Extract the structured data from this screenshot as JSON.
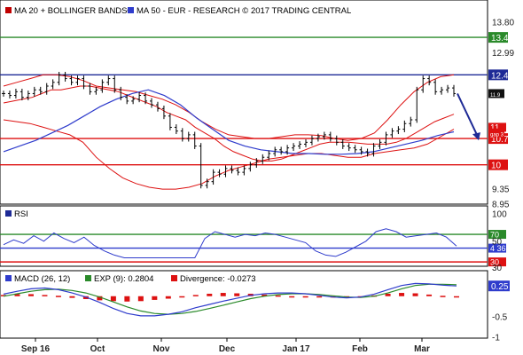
{
  "chart_data": [
    {
      "type": "line",
      "panel": "price",
      "header": {
        "sq1_color": "#c00000",
        "label1": "MA 20 + BOLLINGER BANDS®",
        "sq2_color": "#2f3ccc",
        "label2": "MA 50 - EUR - RESEARCH © 2017 TRADING CENTRAL"
      },
      "ylim": [
        8.95,
        14.35
      ],
      "y_ticks": [
        "13.80",
        "12.99",
        "9.35",
        "8.95"
      ],
      "levels": [
        {
          "value": 13.4,
          "label": "13.4",
          "color": "#2a8a2a"
        },
        {
          "value": 12.4,
          "label": "12.4",
          "color": "#1e2a96"
        },
        {
          "value": 10.7,
          "label": "10.7",
          "color": "#dd1111"
        },
        {
          "value": 10.0,
          "label": "10",
          "color": "#dd1111"
        }
      ],
      "tags": [
        {
          "value": 11.9,
          "label": "11.9",
          "color": "#111111"
        },
        {
          "value": 11.0,
          "label": "11",
          "color": "#dd1111"
        },
        {
          "value": 10.85,
          "label": "gap 3",
          "color": "#dd1111"
        }
      ],
      "price": [
        11.9,
        11.85,
        11.95,
        11.8,
        11.9,
        12.0,
        11.95,
        12.1,
        12.2,
        12.4,
        12.3,
        12.2,
        12.3,
        12.1,
        11.95,
        12.0,
        12.2,
        12.3,
        12.0,
        11.8,
        11.7,
        11.75,
        11.85,
        11.7,
        11.6,
        11.5,
        11.3,
        11.0,
        10.9,
        10.7,
        10.8,
        10.5,
        9.45,
        9.55,
        9.8,
        9.75,
        9.9,
        9.85,
        9.8,
        9.9,
        10.0,
        10.1,
        10.2,
        10.3,
        10.4,
        10.35,
        10.45,
        10.5,
        10.55,
        10.6,
        10.7,
        10.75,
        10.8,
        10.7,
        10.6,
        10.5,
        10.45,
        10.4,
        10.35,
        10.3,
        10.5,
        10.6,
        10.8,
        10.9,
        10.95,
        11.1,
        11.2,
        12.0,
        12.3,
        12.2,
        11.95,
        12.0,
        12.05,
        11.9
      ],
      "ma20": [
        11.65,
        11.7,
        11.75,
        11.8,
        11.9,
        12.0,
        12.0,
        12.05,
        12.1,
        12.1,
        12.05,
        12.0,
        11.95,
        11.85,
        11.75,
        11.65,
        11.55,
        11.4,
        11.3,
        11.2,
        11.0,
        10.85,
        10.7,
        10.5,
        10.35,
        10.25,
        10.15,
        10.1,
        10.1,
        10.15,
        10.25,
        10.35,
        10.45,
        10.55,
        10.6,
        10.6,
        10.6,
        10.58,
        10.55,
        10.55,
        10.55,
        10.6,
        10.7,
        10.85,
        11.0,
        11.15,
        11.25,
        11.35
      ],
      "bb_upper": [
        12.1,
        12.2,
        12.3,
        12.4,
        12.4,
        12.35,
        12.25,
        12.1,
        12.05,
        12.0,
        11.95,
        11.85,
        11.75,
        11.6,
        11.4,
        11.15,
        10.95,
        10.8,
        10.75,
        10.7,
        10.7,
        10.75,
        10.8,
        10.8,
        10.78,
        10.7,
        10.65,
        10.7,
        10.85,
        11.2,
        11.6,
        11.95,
        12.2,
        12.35,
        12.4
      ],
      "bb_lower": [
        11.2,
        11.15,
        11.1,
        11.0,
        10.9,
        10.8,
        10.6,
        10.2,
        9.9,
        9.65,
        9.5,
        9.4,
        9.35,
        9.35,
        9.4,
        9.5,
        9.7,
        9.85,
        9.95,
        10.05,
        10.15,
        10.2,
        10.25,
        10.3,
        10.3,
        10.25,
        10.2,
        10.2,
        10.3,
        10.35,
        10.4,
        10.45,
        10.55,
        10.75,
        10.95
      ],
      "ma50": [
        10.35,
        10.5,
        10.65,
        10.85,
        11.05,
        11.3,
        11.55,
        11.75,
        11.9,
        12.0,
        11.85,
        11.6,
        11.25,
        10.95,
        10.65,
        10.5,
        10.4,
        10.35,
        10.3,
        10.3,
        10.28,
        10.28,
        10.3,
        10.35,
        10.45,
        10.55,
        10.65,
        10.78,
        10.88
      ],
      "forecast_arrow": {
        "from": 11.9,
        "to": 10.7
      }
    },
    {
      "type": "line",
      "panel": "rsi",
      "title": "RSI",
      "ylim": [
        25,
        110
      ],
      "y_ticks": [
        "100",
        "50",
        "30"
      ],
      "levels": [
        {
          "value": 70,
          "label": "70",
          "color": "#2a8a2a"
        },
        {
          "value": 50,
          "label": "4 36",
          "color": "#2f3ccc"
        },
        {
          "value": 30,
          "label": "30",
          "color": "#dd1111"
        }
      ],
      "values": [
        55,
        62,
        57,
        68,
        60,
        72,
        64,
        58,
        66,
        54,
        46,
        40,
        36,
        36,
        36,
        36,
        36,
        36,
        36,
        36,
        64,
        74,
        70,
        66,
        70,
        68,
        72,
        70,
        66,
        62,
        58,
        46,
        40,
        38,
        44,
        52,
        60,
        74,
        78,
        74,
        66,
        68,
        70,
        72,
        66,
        53
      ]
    },
    {
      "type": "line",
      "panel": "macd",
      "legend": [
        {
          "label": "MACD (26, 12)",
          "color": "#2f3ccc"
        },
        {
          "label": "EXP (9): 0.2804",
          "color": "#2a8a2a"
        },
        {
          "label": "Divergence: -0.0273",
          "color": "#dd1111"
        }
      ],
      "ylim": [
        -1.0,
        0.6
      ],
      "y_ticks": [
        "0.25",
        "-0.5",
        "-1"
      ],
      "value_tag": "0.25",
      "macd": [
        0.05,
        0.12,
        0.18,
        0.2,
        0.16,
        0.08,
        -0.02,
        -0.15,
        -0.3,
        -0.42,
        -0.48,
        -0.48,
        -0.44,
        -0.38,
        -0.28,
        -0.2,
        -0.12,
        -0.05,
        0.02,
        0.06,
        0.08,
        0.08,
        0.06,
        0.02,
        -0.02,
        -0.04,
        -0.02,
        0.05,
        0.16,
        0.26,
        0.31,
        0.3,
        0.27,
        0.25
      ],
      "signal": [
        0.0,
        0.06,
        0.12,
        0.16,
        0.17,
        0.14,
        0.08,
        -0.02,
        -0.14,
        -0.26,
        -0.36,
        -0.42,
        -0.44,
        -0.42,
        -0.37,
        -0.3,
        -0.22,
        -0.14,
        -0.06,
        0.0,
        0.04,
        0.06,
        0.06,
        0.04,
        0.01,
        -0.02,
        -0.03,
        0.0,
        0.08,
        0.18,
        0.26,
        0.29,
        0.29,
        0.28
      ],
      "divergence": [
        0.03,
        0.05,
        0.05,
        0.03,
        0.01,
        -0.04,
        -0.07,
        -0.1,
        -0.12,
        -0.13,
        -0.12,
        -0.09,
        -0.06,
        -0.02,
        0.03,
        0.06,
        0.08,
        0.07,
        0.06,
        0.04,
        0.02,
        0.0,
        -0.01,
        -0.02,
        -0.02,
        -0.03,
        -0.02,
        0.02,
        0.06,
        0.08,
        0.07,
        0.04,
        0.01,
        -0.03
      ]
    }
  ],
  "x_ticks": [
    "Sep 16",
    "Oct",
    "Nov",
    "Dec",
    "Jan 17",
    "Feb",
    "Mar"
  ]
}
